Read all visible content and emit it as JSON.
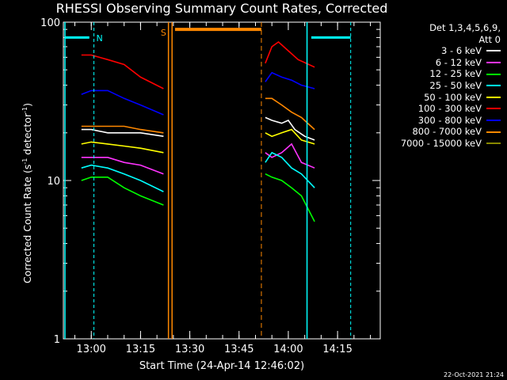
{
  "chart_data": {
    "type": "line",
    "title": "RHESSI Observing Summary Count Rates, Corrected",
    "xlabel": "Start Time (24-Apr-14 12:46:02)",
    "ylabel_text": "Corrected Count Rate (s",
    "ylabel_sup1": "-1",
    "ylabel_mid": " detector",
    "ylabel_sup2": "-1",
    "ylabel_end": ")",
    "y_scale": "log",
    "ylim": [
      1,
      100
    ],
    "xlim_minutes": [
      -8.5,
      88
    ],
    "x_ticks": [
      {
        "label": "13:00",
        "minutes": 0
      },
      {
        "label": "13:15",
        "minutes": 15
      },
      {
        "label": "13:30",
        "minutes": 30
      },
      {
        "label": "13:45",
        "minutes": 45
      },
      {
        "label": "14:00",
        "minutes": 60
      },
      {
        "label": "14:15",
        "minutes": 75
      }
    ],
    "y_ticks": [
      {
        "label": "1",
        "value": 1
      },
      {
        "label": "10",
        "value": 10
      },
      {
        "label": "100",
        "value": 100
      }
    ],
    "legend_header": "Det 1,3,4,5,6,9,",
    "legend_subheader": "Att 0",
    "series": [
      {
        "name": "3 - 6 keV",
        "color": "#ffffff",
        "segments": [
          [
            [
              -3,
              21
            ],
            [
              0,
              21
            ],
            [
              5,
              20
            ],
            [
              10,
              20
            ],
            [
              15,
              20
            ],
            [
              22,
              19
            ]
          ],
          [
            [
              53,
              25
            ],
            [
              55,
              24
            ],
            [
              58,
              23
            ],
            [
              60,
              24
            ],
            [
              62,
              21
            ],
            [
              65,
              19
            ],
            [
              68,
              18
            ]
          ]
        ]
      },
      {
        "name": "6 - 12 keV",
        "color": "#ff33ff",
        "segments": [
          [
            [
              -3,
              14
            ],
            [
              0,
              14
            ],
            [
              5,
              14
            ],
            [
              10,
              13
            ],
            [
              15,
              12.5
            ],
            [
              22,
              11
            ]
          ],
          [
            [
              53,
              15
            ],
            [
              55,
              14
            ],
            [
              58,
              15
            ],
            [
              61,
              17
            ],
            [
              64,
              13
            ],
            [
              68,
              12
            ]
          ]
        ]
      },
      {
        "name": "12 - 25 keV",
        "color": "#00ff00",
        "segments": [
          [
            [
              -3,
              10
            ],
            [
              0,
              10.5
            ],
            [
              5,
              10.5
            ],
            [
              10,
              9
            ],
            [
              15,
              8
            ],
            [
              22,
              7
            ]
          ],
          [
            [
              53,
              11
            ],
            [
              55,
              10.5
            ],
            [
              58,
              10
            ],
            [
              61,
              9
            ],
            [
              64,
              8
            ],
            [
              68,
              5.5
            ]
          ]
        ]
      },
      {
        "name": "25 - 50 keV",
        "color": "#00ffff",
        "segments": [
          [
            [
              -3,
              12
            ],
            [
              0,
              12.5
            ],
            [
              5,
              12
            ],
            [
              10,
              11
            ],
            [
              15,
              10
            ],
            [
              22,
              8.5
            ]
          ],
          [
            [
              53,
              13
            ],
            [
              55,
              15
            ],
            [
              58,
              14
            ],
            [
              61,
              12
            ],
            [
              64,
              11
            ],
            [
              68,
              9
            ]
          ]
        ]
      },
      {
        "name": "50 - 100 keV",
        "color": "#ffff00",
        "segments": [
          [
            [
              -3,
              17
            ],
            [
              0,
              17.5
            ],
            [
              5,
              17
            ],
            [
              10,
              16.5
            ],
            [
              15,
              16
            ],
            [
              22,
              15
            ]
          ],
          [
            [
              53,
              20
            ],
            [
              55,
              19
            ],
            [
              58,
              20
            ],
            [
              61,
              21
            ],
            [
              64,
              18
            ],
            [
              68,
              17
            ]
          ]
        ]
      },
      {
        "name": "100 - 300 keV",
        "color": "#ff0000",
        "segments": [
          [
            [
              -3,
              62
            ],
            [
              0,
              62
            ],
            [
              5,
              58
            ],
            [
              10,
              54
            ],
            [
              15,
              45
            ],
            [
              22,
              38
            ]
          ],
          [
            [
              53,
              55
            ],
            [
              55,
              70
            ],
            [
              57,
              75
            ],
            [
              60,
              66
            ],
            [
              63,
              58
            ],
            [
              68,
              52
            ]
          ]
        ]
      },
      {
        "name": "300 - 800 keV",
        "color": "#0000ff",
        "segments": [
          [
            [
              -3,
              35
            ],
            [
              0,
              37
            ],
            [
              5,
              37
            ],
            [
              10,
              33
            ],
            [
              15,
              30
            ],
            [
              22,
              26
            ]
          ],
          [
            [
              53,
              42
            ],
            [
              55,
              48
            ],
            [
              58,
              45
            ],
            [
              61,
              43
            ],
            [
              64,
              40
            ],
            [
              68,
              38
            ]
          ]
        ]
      },
      {
        "name": "800 - 7000 keV",
        "color": "#ff8800",
        "segments": [
          [
            [
              -3,
              22
            ],
            [
              0,
              22
            ],
            [
              5,
              22
            ],
            [
              10,
              22
            ],
            [
              15,
              21
            ],
            [
              22,
              20
            ]
          ],
          [
            [
              53,
              33
            ],
            [
              55,
              33
            ],
            [
              58,
              30
            ],
            [
              61,
              27
            ],
            [
              64,
              25
            ],
            [
              68,
              21
            ]
          ]
        ]
      },
      {
        "name": "7000 - 15000 keV",
        "color": "#888800",
        "segments": []
      }
    ],
    "annotations": [
      {
        "label": "N",
        "color": "#00ffff"
      },
      {
        "label": "S",
        "color": "#ff8800"
      }
    ],
    "timestamp": "22-Oct-2021 21:24"
  }
}
